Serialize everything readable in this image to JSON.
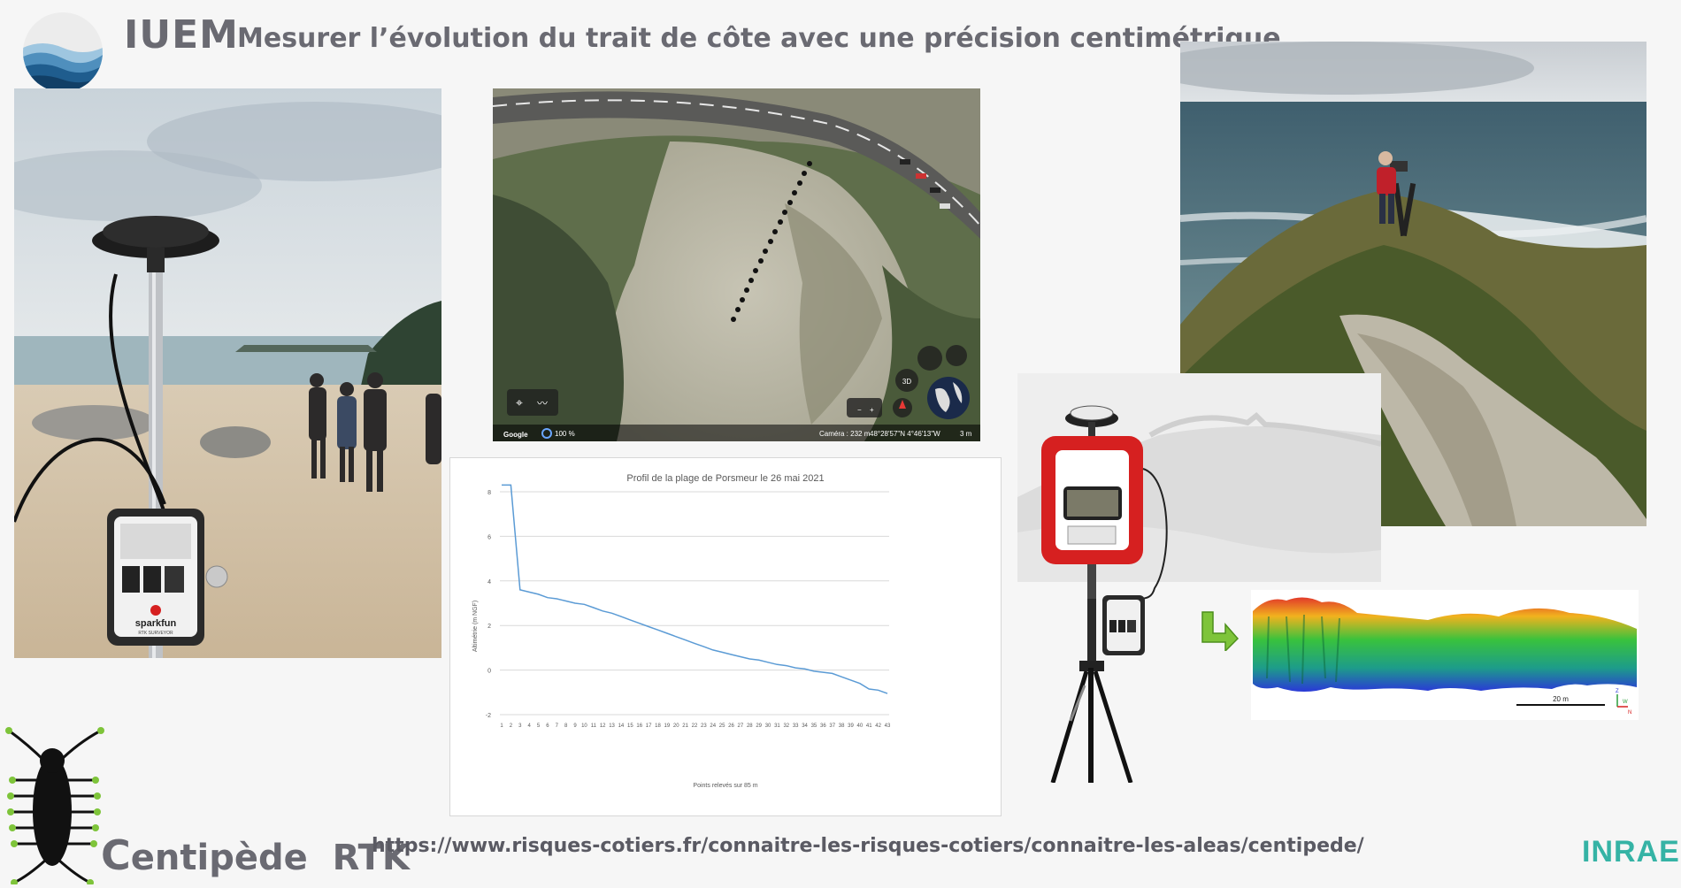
{
  "header": {
    "org_name": "IUEM",
    "headline": "Mesurer l’évolution du trait de côte avec une précision centimétrique"
  },
  "beach_photo": {
    "device_brand": "sparkfun",
    "device_sub": "RTK SURVEYOR"
  },
  "aerial_map": {
    "google_label": "Google",
    "zoom_label": "100 %",
    "camera_label": "Caméra : 232 m",
    "coords_label": "48°28'57\"N 4°46'13\"W",
    "scale_label": "3 m",
    "btn_3d": "3D",
    "zoom_minus": "−",
    "zoom_plus": "+"
  },
  "chart_data": {
    "type": "line",
    "title": "Profil de la plage de Porsmeur le 26 mai 2021",
    "xlabel": "Points relevés sur 85 m",
    "ylabel": "Altimétrie (m NGF)",
    "ylim": [
      -2,
      8
    ],
    "yticks": [
      -2,
      0,
      2,
      4,
      6,
      8
    ],
    "x": [
      1,
      2,
      3,
      4,
      5,
      6,
      7,
      8,
      9,
      10,
      11,
      12,
      13,
      14,
      15,
      16,
      17,
      18,
      19,
      20,
      21,
      22,
      23,
      24,
      25,
      26,
      27,
      28,
      29,
      30,
      31,
      32,
      33,
      34,
      35,
      36,
      37,
      38,
      39,
      40,
      41,
      42,
      43
    ],
    "series": [
      {
        "color": "#5b9bd5",
        "values": [
          8.3,
          8.3,
          3.6,
          3.5,
          3.4,
          3.25,
          3.2,
          3.1,
          3.0,
          2.95,
          2.8,
          2.65,
          2.55,
          2.4,
          2.25,
          2.1,
          1.95,
          1.8,
          1.65,
          1.5,
          1.35,
          1.2,
          1.05,
          0.9,
          0.8,
          0.7,
          0.6,
          0.5,
          0.45,
          0.35,
          0.25,
          0.2,
          0.1,
          0.05,
          -0.05,
          -0.1,
          -0.15,
          -0.3,
          -0.45,
          -0.6,
          -0.85,
          -0.9,
          -1.05
        ]
      }
    ],
    "grid": "horizontal"
  },
  "pointcloud": {
    "scale_label": "20 m",
    "axis_z": "Z",
    "axis_w": "W",
    "axis_n": "N"
  },
  "footer": {
    "title_initial": "C",
    "title_rest": "entipède ",
    "title_rtk": "RTK",
    "url": "https://www.risques-cotiers.fr/connaitre-les-risques-cotiers/connaitre-les-aleas/centipede/",
    "partner_logo": "INRAE"
  },
  "colors": {
    "title_gray": "#6a6a72",
    "inrae_teal": "#35b3a5",
    "centipede_green": "#7ec43a",
    "device_red": "#d62020"
  }
}
